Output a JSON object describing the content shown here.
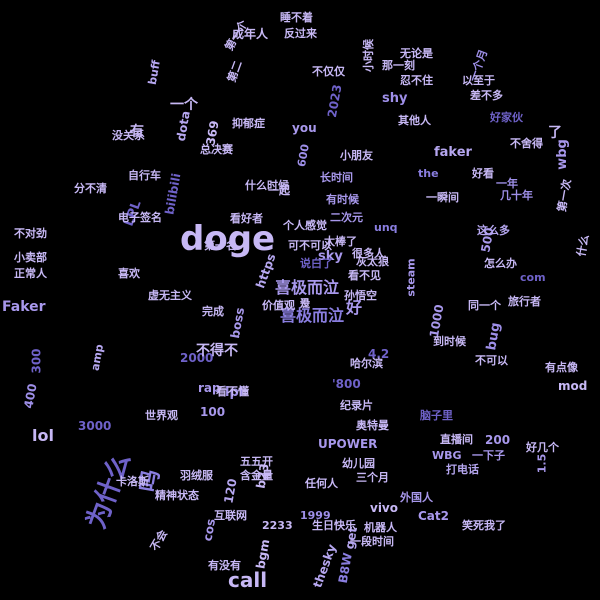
{
  "palette": [
    "#c7b8f5",
    "#a898ec",
    "#8a7ee0",
    "#6f62c9",
    "#b6a7f0",
    "#9e8fe8",
    "#e0d8ff"
  ],
  "words": [
    {
      "text": "doge",
      "c": 0
    },
    {
      "text": "call",
      "c": 0
    },
    {
      "text": "Faker",
      "c": 1
    },
    {
      "text": "为什么",
      "c": 3
    },
    {
      "text": "吗",
      "c": 2
    },
    {
      "text": "喜极而泣",
      "c": 1
    },
    {
      "text": "喜极而泣",
      "c": 2
    },
    {
      "text": "好",
      "c": 1
    },
    {
      "text": "bug",
      "c": 5
    },
    {
      "text": "lol",
      "c": 0
    },
    {
      "text": "sky",
      "c": 1
    },
    {
      "text": "shy",
      "c": 5
    },
    {
      "text": "faker",
      "c": 4
    },
    {
      "text": "wbg",
      "c": 1
    },
    {
      "text": "LPL",
      "c": 3
    },
    {
      "text": "lpl",
      "c": 5
    },
    {
      "text": "bilibili",
      "c": 3
    },
    {
      "text": "dota",
      "c": 4
    },
    {
      "text": "buff",
      "c": 4
    },
    {
      "text": "2023",
      "c": 3
    },
    {
      "text": "you",
      "c": 1
    },
    {
      "text": "boss",
      "c": 1
    },
    {
      "text": "https",
      "c": 4
    },
    {
      "text": "1000",
      "c": 1
    },
    {
      "text": "2000",
      "c": 3
    },
    {
      "text": "200",
      "c": 1
    },
    {
      "text": "300",
      "c": 3
    },
    {
      "text": "400",
      "c": 5
    },
    {
      "text": "3000",
      "c": 3
    },
    {
      "text": "500",
      "c": 1
    },
    {
      "text": "100",
      "c": 1
    },
    {
      "text": "120",
      "c": 4
    },
    {
      "text": "1.5",
      "c": 1
    },
    {
      "text": "4.2",
      "c": 3
    },
    {
      "text": "'800",
      "c": 3
    },
    {
      "text": "UPOWER",
      "c": 1
    },
    {
      "text": "vivo",
      "c": 0
    },
    {
      "text": "1999",
      "c": 5
    },
    {
      "text": "2233",
      "c": 0
    },
    {
      "text": "bgm",
      "c": 0
    },
    {
      "text": "B8W",
      "c": 2
    },
    {
      "text": "get",
      "c": 4
    },
    {
      "text": "thesky",
      "c": 4
    },
    {
      "text": "cos",
      "c": 1
    },
    {
      "text": "b23",
      "c": 0
    },
    {
      "text": "rap",
      "c": 1
    },
    {
      "text": "amp",
      "c": 4
    },
    {
      "text": "mod",
      "c": 0
    },
    {
      "text": "com",
      "c": 3
    },
    {
      "text": "steam",
      "c": 1
    },
    {
      "text": "the",
      "c": 2
    },
    {
      "text": "unq",
      "c": 2
    },
    {
      "text": "369",
      "c": 0
    },
    {
      "text": "600",
      "c": 5
    },
    {
      "text": "Cat2",
      "c": 1
    },
    {
      "text": "WBG",
      "c": 1
    },
    {
      "text": "无论是",
      "c": 0
    },
    {
      "text": "一个月",
      "c": 5
    },
    {
      "text": "差不多",
      "c": 0
    },
    {
      "text": "以至于",
      "c": 0
    },
    {
      "text": "其他人",
      "c": 0
    },
    {
      "text": "好家伙",
      "c": 3
    },
    {
      "text": "不舍得",
      "c": 0
    },
    {
      "text": "一年",
      "c": 5
    },
    {
      "text": "几十年",
      "c": 5
    },
    {
      "text": "这么多",
      "c": 4
    },
    {
      "text": "好几个",
      "c": 0
    },
    {
      "text": "有点像",
      "c": 0
    },
    {
      "text": "旅行者",
      "c": 0
    },
    {
      "text": "同一个",
      "c": 0
    },
    {
      "text": "怎么办",
      "c": 0
    },
    {
      "text": "到时候",
      "c": 0
    },
    {
      "text": "直播间",
      "c": 0
    },
    {
      "text": "脑子里",
      "c": 3
    },
    {
      "text": "一下子",
      "c": 1
    },
    {
      "text": "打电话",
      "c": 4
    },
    {
      "text": "外国人",
      "c": 1
    },
    {
      "text": "生日快乐",
      "c": 0
    },
    {
      "text": "互联网",
      "c": 0
    },
    {
      "text": "含金量",
      "c": 0
    },
    {
      "text": "五五开",
      "c": 0
    },
    {
      "text": "任何人",
      "c": 0
    },
    {
      "text": "世界观",
      "c": 0
    },
    {
      "text": "纪录片",
      "c": 0
    },
    {
      "text": "奥特曼",
      "c": 0
    },
    {
      "text": "价值观",
      "c": 0
    },
    {
      "text": "个人感觉",
      "c": 0
    },
    {
      "text": "有时候",
      "c": 1
    },
    {
      "text": "长时间",
      "c": 1
    },
    {
      "text": "二次元",
      "c": 1
    },
    {
      "text": "说白了",
      "c": 3
    },
    {
      "text": "可不可以",
      "c": 0
    },
    {
      "text": "灰太狼",
      "c": 0
    },
    {
      "text": "看好者",
      "c": 0
    },
    {
      "text": "抑郁症",
      "c": 0
    },
    {
      "text": "总决赛",
      "c": 0
    },
    {
      "text": "没关系",
      "c": 0
    },
    {
      "text": "分不清",
      "c": 0
    },
    {
      "text": "自行车",
      "c": 0
    },
    {
      "text": "电子签名",
      "c": 0
    },
    {
      "text": "虚无主义",
      "c": 0
    },
    {
      "text": "小卖部",
      "c": 0
    },
    {
      "text": "正常人",
      "c": 0
    },
    {
      "text": "不对劲",
      "c": 0
    },
    {
      "text": "睡不着",
      "c": 0
    },
    {
      "text": "反过来",
      "c": 0
    },
    {
      "text": "忍不住",
      "c": 0
    },
    {
      "text": "不仅仅",
      "c": 0
    },
    {
      "text": "那一刻",
      "c": 0
    },
    {
      "text": "小时候",
      "c": 0
    },
    {
      "text": "看不见",
      "c": 0
    },
    {
      "text": "孙悟空",
      "c": 0
    },
    {
      "text": "哈尔滨",
      "c": 0
    },
    {
      "text": "羽绒服",
      "c": 0
    },
    {
      "text": "精神状态",
      "c": 0
    },
    {
      "text": "卡洛斯",
      "c": 0
    },
    {
      "text": "幼儿园",
      "c": 0
    },
    {
      "text": "看不懂",
      "c": 0
    },
    {
      "text": "第一个",
      "c": 0
    },
    {
      "text": "第一次",
      "c": 0
    },
    {
      "text": "不可以",
      "c": 0
    },
    {
      "text": "很多人",
      "c": 0
    },
    {
      "text": "一段时间",
      "c": 0
    },
    {
      "text": "一瞬间",
      "c": 0
    },
    {
      "text": "太棒了",
      "c": 0
    },
    {
      "text": "喜欢",
      "c": 0
    },
    {
      "text": "小朋友",
      "c": 0
    },
    {
      "text": "一起",
      "c": 0
    },
    {
      "text": "什么",
      "c": 0
    },
    {
      "text": "第二",
      "c": 0
    },
    {
      "text": "什么时候",
      "c": 0
    },
    {
      "text": "完成",
      "c": 0
    },
    {
      "text": "笑死我了",
      "c": 0
    },
    {
      "text": "第一名",
      "c": 0
    },
    {
      "text": "不会",
      "c": 0
    },
    {
      "text": "有没有",
      "c": 0
    },
    {
      "text": "机器人",
      "c": 0
    },
    {
      "text": "三个月",
      "c": 0
    },
    {
      "text": "好看",
      "c": 0
    },
    {
      "text": "成年人",
      "c": 0
    },
    {
      "text": "不得不",
      "c": 0
    },
    {
      "text": "一个",
      "c": 0
    },
    {
      "text": "了",
      "c": 0
    },
    {
      "text": "有",
      "c": 0
    },
    {
      "text": "是",
      "c": 0
    },
    {
      "text": "没",
      "c": 0
    }
  ]
}
